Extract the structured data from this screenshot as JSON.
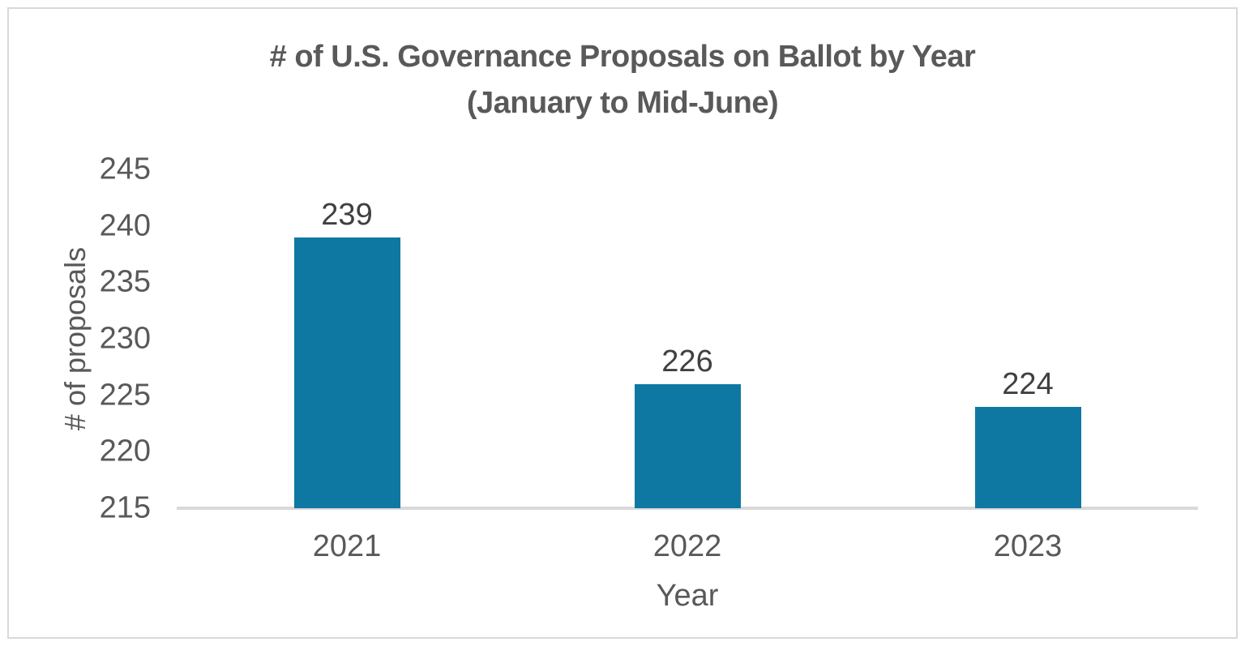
{
  "window": {
    "background_color": "#ffffff",
    "frame_border_color": "#d9d9d9"
  },
  "chart_data": {
    "type": "bar",
    "title": "# of U.S. Governance Proposals on Ballot by Year (January to Mid-June)",
    "title_lines": [
      "# of U.S. Governance Proposals on Ballot by Year",
      "(January to Mid-June)"
    ],
    "xlabel": "Year",
    "ylabel": "# of proposals",
    "categories": [
      "2021",
      "2022",
      "2023"
    ],
    "values": [
      239,
      226,
      224
    ],
    "ylim": [
      215,
      245
    ],
    "yticks": [
      215,
      220,
      225,
      230,
      235,
      240,
      245
    ],
    "grid": "off",
    "legend": "none",
    "bar_color": "#0e78a3",
    "axis_line_color": "#d9d9d9",
    "text_color": "#595959",
    "data_label_color": "#404040"
  }
}
